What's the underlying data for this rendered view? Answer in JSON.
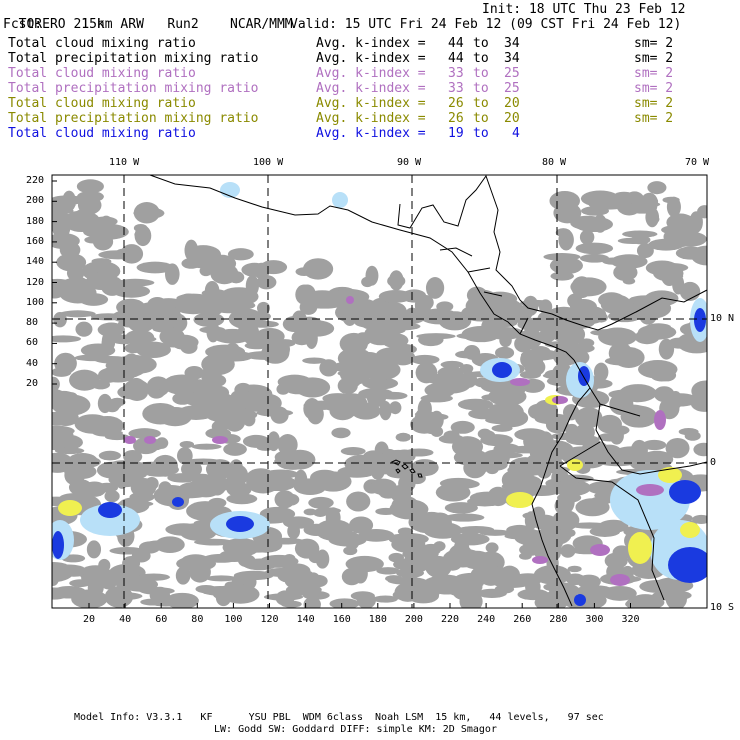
{
  "header": {
    "model": "TORERO",
    "resolution": "15km ARW",
    "run": "Run2",
    "org": "NCAR/MMM",
    "init": "Init: 18 UTC Thu 23 Feb 12",
    "fcst_label": "Fcst:",
    "fcst_value": "21 h",
    "valid": "Valid: 15 UTC Fri 24 Feb 12 (09 CST Fri 24 Feb 12)"
  },
  "legend": [
    {
      "field": "Total cloud mixing ratio",
      "kidx": "Avg. k-index =",
      "from": "44",
      "to_word": "to",
      "to": "34",
      "sm": "sm= 2",
      "color": "#000000"
    },
    {
      "field": "Total precipitation mixing ratio",
      "kidx": "Avg. k-index =",
      "from": "44",
      "to_word": "to",
      "to": "34",
      "sm": "sm= 2",
      "color": "#000000"
    },
    {
      "field": "Total cloud mixing ratio",
      "kidx": "Avg. k-index =",
      "from": "33",
      "to_word": "to",
      "to": "25",
      "sm": "sm= 2",
      "color": "#b070c0"
    },
    {
      "field": "Total precipitation mixing ratio",
      "kidx": "Avg. k-index =",
      "from": "33",
      "to_word": "to",
      "to": "25",
      "sm": "sm= 2",
      "color": "#b070c0"
    },
    {
      "field": "Total cloud mixing ratio",
      "kidx": "Avg. k-index =",
      "from": "26",
      "to_word": "to",
      "to": "20",
      "sm": "sm= 2",
      "color": "#8a8a00"
    },
    {
      "field": "Total precipitation mixing ratio",
      "kidx": "Avg. k-index =",
      "from": "26",
      "to_word": "to",
      "to": "20",
      "sm": "sm= 2",
      "color": "#8a8a00"
    },
    {
      "field": "Total cloud mixing ratio",
      "kidx": "Avg. k-index =",
      "from": "19",
      "to_word": "to",
      "to": "4",
      "sm": "",
      "color": "#1010e0"
    }
  ],
  "lon_labels": [
    "110 W",
    "100 W",
    "90 W",
    "80 W",
    "70 W"
  ],
  "lat_labels": [
    "10 N",
    "0",
    "10 S"
  ],
  "y_ticks": [
    "220",
    "200",
    "180",
    "160",
    "140",
    "120",
    "100",
    "80",
    "60",
    "40",
    "20"
  ],
  "x_ticks": [
    "20",
    "40",
    "60",
    "80",
    "100",
    "120",
    "140",
    "160",
    "180",
    "200",
    "220",
    "240",
    "260",
    "280",
    "300",
    "320"
  ],
  "footer": {
    "line1": "Model Info: V3.3.1   KF      YSU PBL  WDM 6class  Noah LSM  15 km,   44 levels,   97 sec",
    "line2": "LW: Godd SW: Goddard DIFF: simple KM: 2D Smagor"
  },
  "colors": {
    "cloud_gray": "#a0a0a0",
    "purple": "#b070c0",
    "yellow": "#f0f050",
    "blue": "#1a3ae0",
    "light_blue": "#b8e0f8"
  }
}
